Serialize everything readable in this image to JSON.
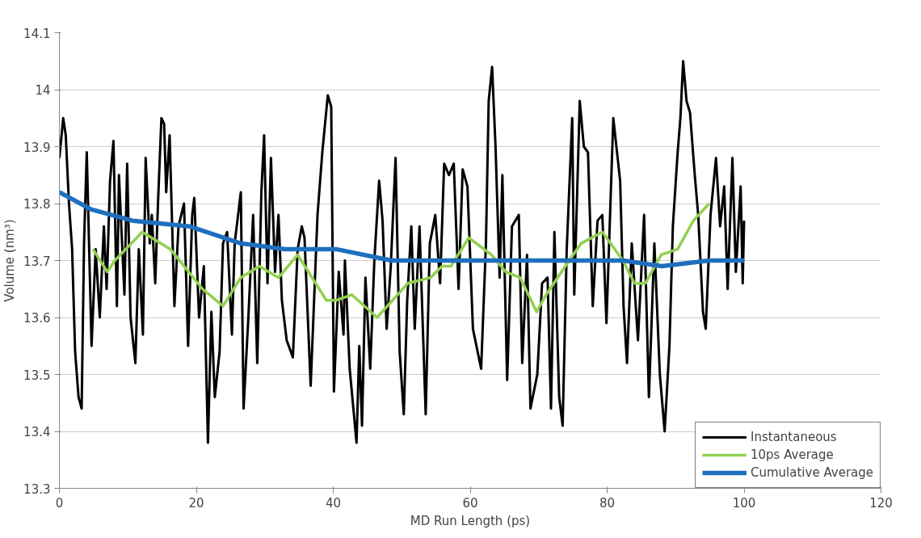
{
  "chart_data": {
    "type": "line",
    "xlabel": "MD Run Length (ps)",
    "ylabel": "Volume (nm³)",
    "xlim": [
      0,
      120
    ],
    "xticks": [
      0,
      20,
      40,
      60,
      80,
      100,
      120
    ],
    "ylim": [
      13.3,
      14.1
    ],
    "yticks": [
      13.3,
      13.4,
      13.5,
      13.6,
      13.7,
      13.8,
      13.9,
      14,
      14.1
    ],
    "grid": "y",
    "legend": "bottom right",
    "line_style": "solid",
    "marker": "none",
    "series": [
      {
        "name": "Instantaneous",
        "color": "#000000",
        "x": [
          0,
          0.56,
          0.93,
          1.4,
          1.86,
          2.3,
          2.8,
          3.25,
          3.6,
          4.0,
          4.7,
          5.3,
          5.9,
          6.5,
          6.9,
          7.4,
          7.9,
          8.4,
          8.7,
          9.5,
          9.9,
          10.4,
          11.1,
          11.6,
          12.2,
          12.6,
          13.2,
          13.5,
          14.0,
          14.4,
          14.9,
          15.3,
          15.6,
          16.1,
          16.8,
          17.4,
          18.2,
          18.8,
          19.4,
          19.7,
          20.4,
          21.1,
          21.7,
          22.2,
          22.7,
          23.4,
          23.9,
          24.5,
          25.2,
          25.6,
          26.5,
          26.9,
          27.6,
          28.3,
          28.9,
          29.5,
          29.9,
          30.4,
          30.9,
          31.5,
          32.0,
          32.5,
          33.2,
          34.1,
          34.8,
          35.4,
          35.8,
          36.7,
          37.7,
          38.4,
          39.2,
          39.7,
          40.1,
          40.8,
          41.5,
          41.7,
          42.4,
          43.4,
          43.8,
          44.2,
          44.7,
          45.4,
          46.0,
          46.7,
          47.2,
          47.8,
          48.4,
          49.1,
          49.7,
          50.3,
          50.8,
          51.4,
          51.9,
          52.6,
          53.5,
          54.1,
          54.9,
          55.6,
          56.2,
          56.9,
          57.6,
          58.3,
          58.9,
          59.6,
          60.4,
          61.6,
          62.3,
          62.7,
          63.2,
          63.7,
          64.3,
          64.7,
          65.4,
          66.1,
          67.1,
          67.6,
          68.3,
          68.8,
          69.8,
          70.5,
          71.3,
          71.8,
          72.3,
          73.0,
          73.5,
          74.1,
          74.9,
          75.2,
          76.0,
          76.6,
          77.2,
          77.9,
          78.6,
          79.3,
          79.9,
          80.9,
          81.9,
          82.4,
          82.9,
          83.6,
          84.5,
          85.4,
          86.1,
          86.9,
          87.7,
          88.4,
          89.1,
          89.6,
          90.3,
          90.7,
          91.1,
          91.6,
          92.1,
          92.8,
          93.3,
          94.0,
          94.4,
          95.1,
          95.9,
          96.5,
          97.1,
          97.6,
          98.3,
          98.8,
          99.5,
          99.8,
          100
        ],
        "values": [
          13.88,
          13.95,
          13.92,
          13.8,
          13.72,
          13.54,
          13.46,
          13.44,
          13.73,
          13.89,
          13.55,
          13.72,
          13.6,
          13.76,
          13.65,
          13.84,
          13.91,
          13.62,
          13.85,
          13.64,
          13.87,
          13.6,
          13.52,
          13.72,
          13.57,
          13.88,
          13.73,
          13.78,
          13.66,
          13.8,
          13.95,
          13.94,
          13.82,
          13.92,
          13.62,
          13.76,
          13.8,
          13.55,
          13.78,
          13.81,
          13.6,
          13.69,
          13.38,
          13.61,
          13.46,
          13.54,
          13.73,
          13.75,
          13.57,
          13.73,
          13.82,
          13.44,
          13.6,
          13.78,
          13.52,
          13.82,
          13.92,
          13.66,
          13.88,
          13.68,
          13.78,
          13.63,
          13.56,
          13.53,
          13.72,
          13.76,
          13.74,
          13.48,
          13.78,
          13.89,
          13.99,
          13.97,
          13.47,
          13.68,
          13.57,
          13.7,
          13.51,
          13.38,
          13.55,
          13.41,
          13.67,
          13.51,
          13.7,
          13.84,
          13.77,
          13.58,
          13.69,
          13.88,
          13.54,
          13.43,
          13.63,
          13.76,
          13.58,
          13.76,
          13.43,
          13.73,
          13.78,
          13.66,
          13.87,
          13.85,
          13.87,
          13.65,
          13.86,
          13.83,
          13.58,
          13.51,
          13.73,
          13.98,
          14.04,
          13.9,
          13.67,
          13.85,
          13.49,
          13.76,
          13.78,
          13.52,
          13.71,
          13.44,
          13.5,
          13.66,
          13.67,
          13.44,
          13.75,
          13.46,
          13.41,
          13.72,
          13.95,
          13.64,
          13.98,
          13.9,
          13.89,
          13.62,
          13.77,
          13.78,
          13.59,
          13.95,
          13.84,
          13.62,
          13.52,
          13.73,
          13.56,
          13.78,
          13.46,
          13.73,
          13.5,
          13.4,
          13.55,
          13.76,
          13.89,
          13.95,
          14.05,
          13.98,
          13.96,
          13.85,
          13.78,
          13.61,
          13.58,
          13.78,
          13.88,
          13.76,
          13.83,
          13.65,
          13.88,
          13.68,
          13.83,
          13.66,
          13.77
        ]
      },
      {
        "name": "10ps Average",
        "color": "#92d050",
        "x": [
          4.9,
          7.0,
          8.1,
          9.7,
          12.1,
          16.2,
          20.9,
          23.9,
          26.5,
          29.2,
          32.0,
          34.8,
          39.0,
          40.4,
          42.7,
          46.4,
          50.9,
          54.2,
          55.9,
          57.2,
          59.8,
          63.1,
          65.2,
          67.3,
          69.7,
          71.1,
          73.9,
          76.2,
          79.3,
          82.3,
          84.0,
          85.6,
          87.9,
          90.3,
          92.6,
          94.9
        ],
        "values": [
          13.72,
          13.68,
          13.7,
          13.72,
          13.75,
          13.72,
          13.65,
          13.62,
          13.67,
          13.69,
          13.67,
          13.71,
          13.63,
          13.63,
          13.64,
          13.6,
          13.66,
          13.67,
          13.69,
          13.69,
          13.74,
          13.71,
          13.68,
          13.67,
          13.61,
          13.64,
          13.69,
          13.73,
          13.75,
          13.7,
          13.66,
          13.66,
          13.71,
          13.72,
          13.77,
          13.8
        ]
      },
      {
        "name": "Cumulative Average",
        "color": "#1f6fbf",
        "x": [
          0,
          4.6,
          10.7,
          19.0,
          26.5,
          33.0,
          40.4,
          48.5,
          57.9,
          67.3,
          82.3,
          88.0,
          94.9,
          100
        ],
        "values": [
          13.82,
          13.79,
          13.77,
          13.76,
          13.73,
          13.72,
          13.72,
          13.7,
          13.7,
          13.7,
          13.7,
          13.69,
          13.7,
          13.7
        ]
      }
    ]
  }
}
